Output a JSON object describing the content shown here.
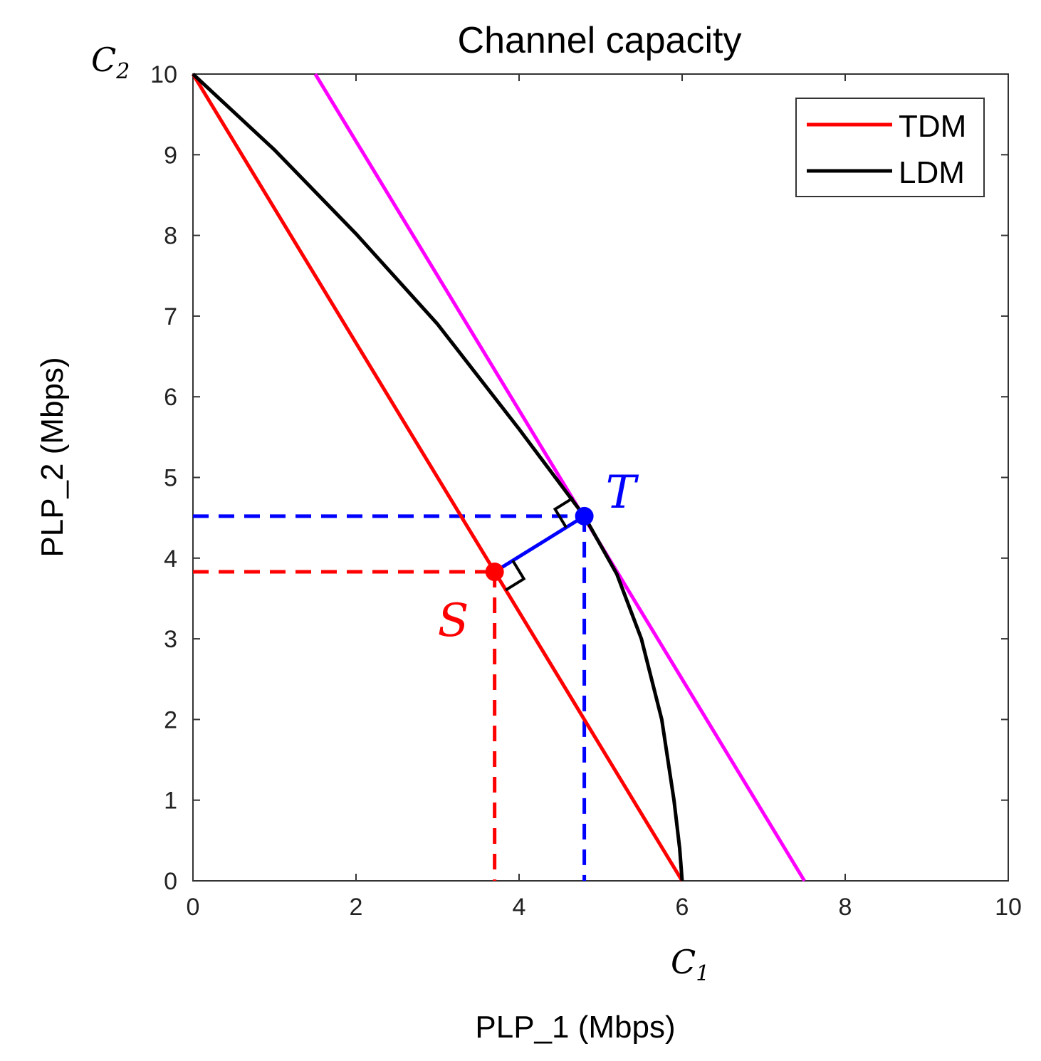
{
  "chart_data": {
    "type": "line",
    "title": "Channel capacity",
    "xlabel": "PLP_1 (Mbps)",
    "ylabel": "PLP_2 (Mbps)",
    "x_symbol": "C",
    "x_symbol_sub": "1",
    "y_symbol": "C",
    "y_symbol_sub": "2",
    "xlim": [
      0,
      10
    ],
    "ylim": [
      0,
      10
    ],
    "xticks": [
      0,
      2,
      4,
      6,
      8,
      10
    ],
    "yticks": [
      0,
      1,
      2,
      3,
      4,
      5,
      6,
      7,
      8,
      9,
      10
    ],
    "grid": false,
    "legend_position": "top-right",
    "series": [
      {
        "name": "TDM",
        "color": "#ff0000",
        "x": [
          0,
          6
        ],
        "y": [
          10,
          0
        ]
      },
      {
        "name": "LDM",
        "color": "#000000",
        "x": [
          0,
          1,
          2,
          3,
          4,
          4.8,
          5.2,
          5.5,
          5.75,
          5.9,
          5.97,
          6.0
        ],
        "y": [
          10,
          9.06,
          8.02,
          6.9,
          5.6,
          4.52,
          3.8,
          3.0,
          2.0,
          1.0,
          0.4,
          0
        ]
      }
    ],
    "tangent_line": {
      "color": "#ff00ff",
      "x": [
        1.5,
        7.5
      ],
      "y": [
        10,
        0
      ]
    },
    "points": [
      {
        "label": "S",
        "x": 3.7,
        "y": 3.83,
        "color": "#ff0000"
      },
      {
        "label": "T",
        "x": 4.8,
        "y": 4.52,
        "color": "#0000ff"
      }
    ],
    "connector_color": "#0000ff"
  }
}
